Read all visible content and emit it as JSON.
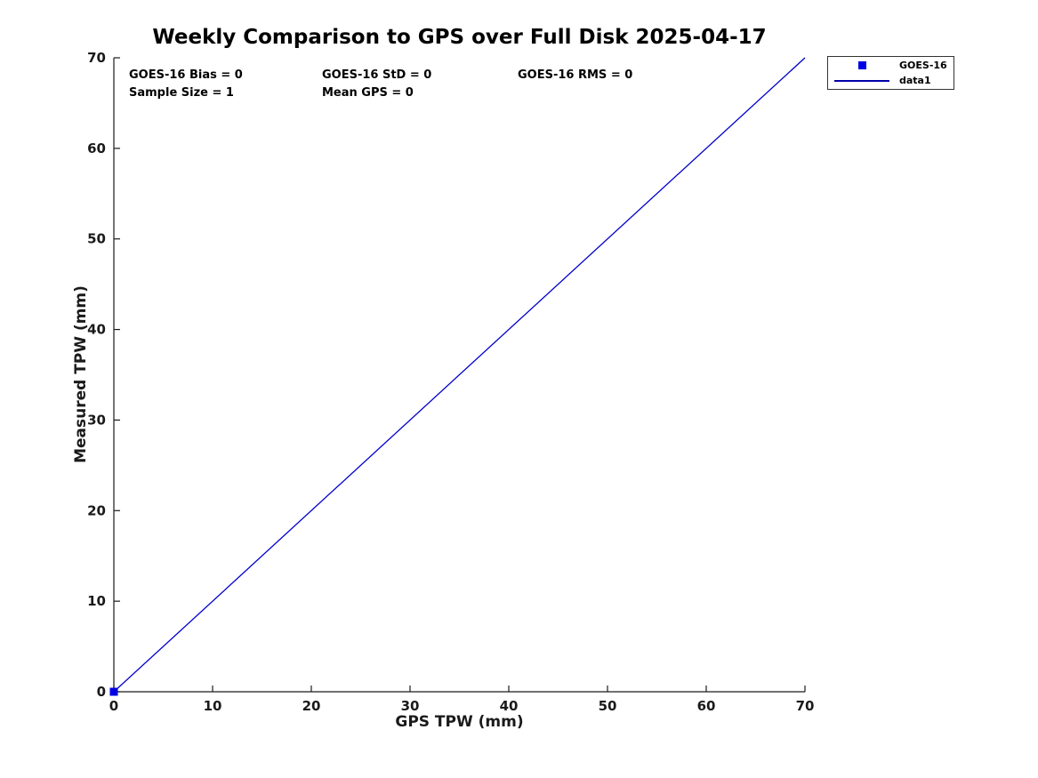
{
  "figure": {
    "title": "Weekly Comparison to GPS over Full Disk 2025-04-17"
  },
  "annotations": {
    "bias": "GOES-16 Bias = 0",
    "std": "GOES-16 StD = 0",
    "rms": "GOES-16 RMS = 0",
    "sample_size": "Sample Size = 1",
    "mean_gps": "Mean GPS = 0"
  },
  "legend": {
    "entries": [
      {
        "label": "GOES-16",
        "marker": "square",
        "color": "#0000e6"
      },
      {
        "label": "data1",
        "marker": "line",
        "color": "#0000a8"
      }
    ]
  },
  "colors": {
    "marker_blue": "#0000e6",
    "line_blue": "#0000cc",
    "axis": "#1a1a1a",
    "text": "#000000",
    "legend_border": "#333333"
  },
  "chart_data": {
    "type": "scatter",
    "title": "Weekly Comparison to GPS over Full Disk 2025-04-17",
    "xlabel": "GPS TPW (mm)",
    "ylabel": "Measured TPW (mm)",
    "xlim": [
      0,
      70
    ],
    "ylim": [
      0,
      70
    ],
    "xticks": [
      0,
      10,
      20,
      30,
      40,
      50,
      60,
      70
    ],
    "yticks": [
      0,
      10,
      20,
      30,
      40,
      50,
      60,
      70
    ],
    "grid": false,
    "box": false,
    "legend_position": "outside-top-right",
    "series": [
      {
        "name": "GOES-16",
        "type": "scatter",
        "marker": "square",
        "color": "#0000e6",
        "points": [
          [
            0,
            0
          ]
        ]
      },
      {
        "name": "data1",
        "type": "line",
        "color": "#0000cc",
        "points": [
          [
            0,
            0
          ],
          [
            70,
            70
          ]
        ]
      }
    ],
    "stats": {
      "goes16_bias": 0,
      "goes16_std": 0,
      "goes16_rms": 0,
      "sample_size": 1,
      "mean_gps": 0
    }
  }
}
